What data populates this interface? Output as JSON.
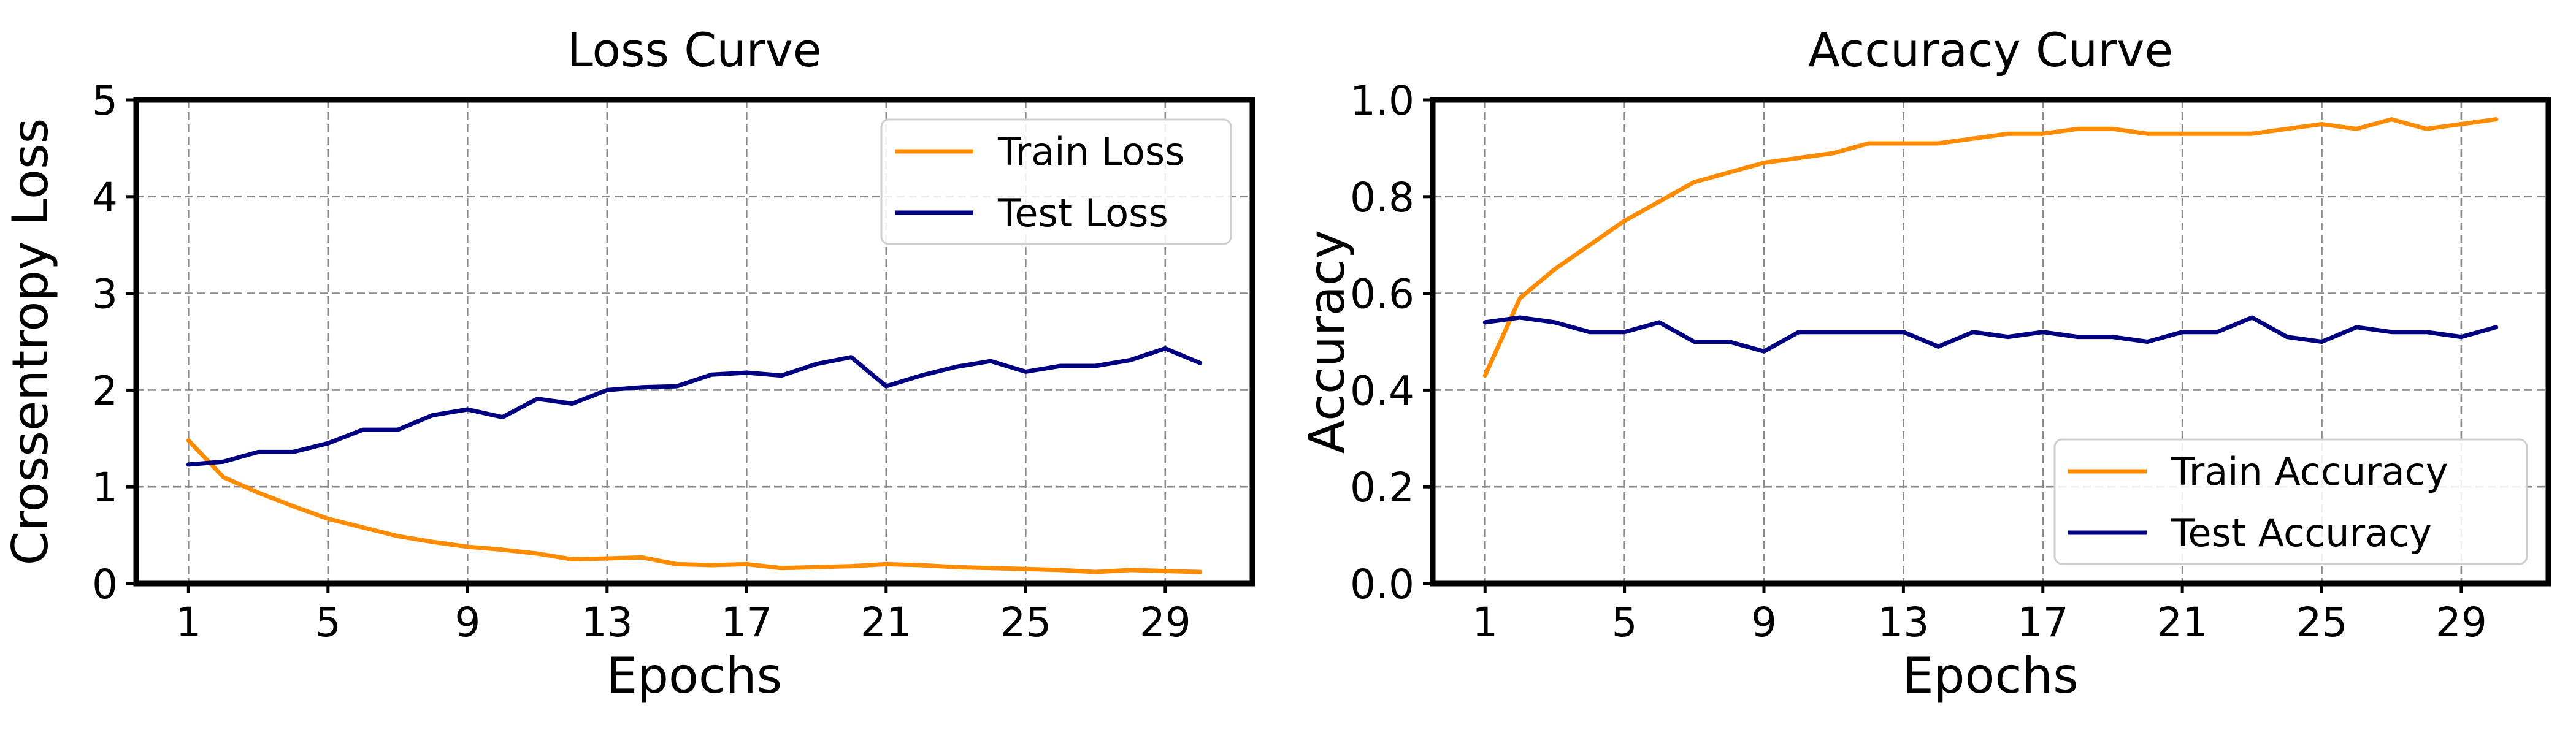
{
  "chart_data": [
    {
      "type": "line",
      "title": "Loss Curve",
      "xlabel": "Epochs",
      "ylabel": "Crossentropy Loss",
      "x": [
        1,
        2,
        3,
        4,
        5,
        6,
        7,
        8,
        9,
        10,
        11,
        12,
        13,
        14,
        15,
        16,
        17,
        18,
        19,
        20,
        21,
        22,
        23,
        24,
        25,
        26,
        27,
        28,
        29,
        30
      ],
      "xlim": [
        -0.5,
        31.5
      ],
      "ylim": [
        0,
        5
      ],
      "xticks": [
        1,
        5,
        9,
        13,
        17,
        21,
        25,
        29
      ],
      "yticks": [
        0,
        1,
        2,
        3,
        4,
        5
      ],
      "grid": true,
      "legend_position": "top-right",
      "series": [
        {
          "name": "Train Loss",
          "color": "#ff8c00",
          "values": [
            1.48,
            1.1,
            0.94,
            0.8,
            0.67,
            0.58,
            0.49,
            0.43,
            0.38,
            0.35,
            0.31,
            0.25,
            0.26,
            0.27,
            0.2,
            0.19,
            0.2,
            0.16,
            0.17,
            0.18,
            0.2,
            0.19,
            0.17,
            0.16,
            0.15,
            0.14,
            0.12,
            0.14,
            0.13,
            0.12
          ]
        },
        {
          "name": "Test Loss",
          "color": "#000080",
          "values": [
            1.23,
            1.26,
            1.36,
            1.36,
            1.45,
            1.59,
            1.59,
            1.74,
            1.8,
            1.72,
            1.91,
            1.86,
            2.0,
            2.03,
            2.04,
            2.16,
            2.18,
            2.15,
            2.27,
            2.34,
            2.04,
            2.15,
            2.24,
            2.3,
            2.19,
            2.25,
            2.25,
            2.31,
            2.43,
            2.28
          ]
        }
      ]
    },
    {
      "type": "line",
      "title": "Accuracy Curve",
      "xlabel": "Epochs",
      "ylabel": "Accuracy",
      "x": [
        1,
        2,
        3,
        4,
        5,
        6,
        7,
        8,
        9,
        10,
        11,
        12,
        13,
        14,
        15,
        16,
        17,
        18,
        19,
        20,
        21,
        22,
        23,
        24,
        25,
        26,
        27,
        28,
        29,
        30
      ],
      "xlim": [
        -0.5,
        31.5
      ],
      "ylim": [
        0,
        1
      ],
      "xticks": [
        1,
        5,
        9,
        13,
        17,
        21,
        25,
        29
      ],
      "yticks": [
        0.0,
        0.2,
        0.4,
        0.6,
        0.8,
        1.0
      ],
      "ytick_labels": [
        "0.0",
        "0.2",
        "0.4",
        "0.6",
        "0.8",
        "1.0"
      ],
      "grid": true,
      "legend_position": "bottom-right",
      "series": [
        {
          "name": "Train Accuracy",
          "color": "#ff8c00",
          "values": [
            0.43,
            0.59,
            0.65,
            0.7,
            0.75,
            0.79,
            0.83,
            0.85,
            0.87,
            0.88,
            0.89,
            0.91,
            0.91,
            0.91,
            0.92,
            0.93,
            0.93,
            0.94,
            0.94,
            0.93,
            0.93,
            0.93,
            0.93,
            0.94,
            0.95,
            0.94,
            0.96,
            0.94,
            0.95,
            0.96
          ]
        },
        {
          "name": "Test Accuracy",
          "color": "#000080",
          "values": [
            0.54,
            0.55,
            0.54,
            0.52,
            0.52,
            0.54,
            0.5,
            0.5,
            0.48,
            0.52,
            0.52,
            0.52,
            0.52,
            0.49,
            0.52,
            0.51,
            0.52,
            0.51,
            0.51,
            0.5,
            0.52,
            0.52,
            0.55,
            0.51,
            0.5,
            0.53,
            0.52,
            0.52,
            0.51,
            0.53
          ]
        }
      ]
    }
  ]
}
